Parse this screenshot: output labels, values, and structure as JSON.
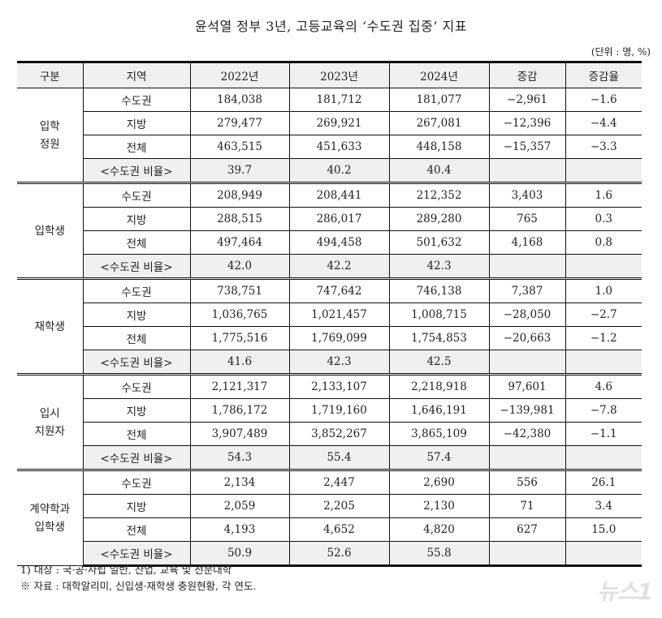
{
  "title": "윤석열 정부 3년, 고등교육의 ‘수도권 집중’ 지표",
  "unit": "(단위 : 명, %)",
  "headers": [
    "구분",
    "지역",
    "2022년",
    "2023년",
    "2024년",
    "증감",
    "증감율"
  ],
  "groups": [
    {
      "label_lines": [
        "입학",
        "정원"
      ],
      "rows": [
        {
          "region": "수도권",
          "y2022": "184,038",
          "y2023": "181,712",
          "y2024": "181,077",
          "change": "−2,961",
          "rate": "−1.6"
        },
        {
          "region": "지방",
          "y2022": "279,477",
          "y2023": "269,921",
          "y2024": "267,081",
          "change": "−12,396",
          "rate": "−4.4"
        },
        {
          "region": "전체",
          "y2022": "463,515",
          "y2023": "451,633",
          "y2024": "448,158",
          "change": "−15,357",
          "rate": "−3.3"
        },
        {
          "region": "<수도권 비율>",
          "y2022": "39.7",
          "y2023": "40.2",
          "y2024": "40.4",
          "change": "",
          "rate": ""
        }
      ]
    },
    {
      "label_lines": [
        "입학생"
      ],
      "rows": [
        {
          "region": "수도권",
          "y2022": "208,949",
          "y2023": "208,441",
          "y2024": "212,352",
          "change": "3,403",
          "rate": "1.6"
        },
        {
          "region": "지방",
          "y2022": "288,515",
          "y2023": "286,017",
          "y2024": "289,280",
          "change": "765",
          "rate": "0.3"
        },
        {
          "region": "전체",
          "y2022": "497,464",
          "y2023": "494,458",
          "y2024": "501,632",
          "change": "4,168",
          "rate": "0.8"
        },
        {
          "region": "<수도권 비율>",
          "y2022": "42.0",
          "y2023": "42.2",
          "y2024": "42.3",
          "change": "",
          "rate": ""
        }
      ]
    },
    {
      "label_lines": [
        "재학생"
      ],
      "rows": [
        {
          "region": "수도권",
          "y2022": "738,751",
          "y2023": "747,642",
          "y2024": "746,138",
          "change": "7,387",
          "rate": "1.0"
        },
        {
          "region": "지방",
          "y2022": "1,036,765",
          "y2023": "1,021,457",
          "y2024": "1,008,715",
          "change": "−28,050",
          "rate": "−2.7"
        },
        {
          "region": "전체",
          "y2022": "1,775,516",
          "y2023": "1,769,099",
          "y2024": "1,754,853",
          "change": "−20,663",
          "rate": "−1.2"
        },
        {
          "region": "<수도권 비율>",
          "y2022": "41.6",
          "y2023": "42.3",
          "y2024": "42.5",
          "change": "",
          "rate": ""
        }
      ]
    },
    {
      "label_lines": [
        "입시",
        "지원자"
      ],
      "rows": [
        {
          "region": "수도권",
          "y2022": "2,121,317",
          "y2023": "2,133,107",
          "y2024": "2,218,918",
          "change": "97,601",
          "rate": "4.6"
        },
        {
          "region": "지방",
          "y2022": "1,786,172",
          "y2023": "1,719,160",
          "y2024": "1,646,191",
          "change": "−139,981",
          "rate": "−7.8"
        },
        {
          "region": "전체",
          "y2022": "3,907,489",
          "y2023": "3,852,267",
          "y2024": "3,865,109",
          "change": "−42,380",
          "rate": "−1.1"
        },
        {
          "region": "<수도권 비율>",
          "y2022": "54.3",
          "y2023": "55.4",
          "y2024": "57.4",
          "change": "",
          "rate": ""
        }
      ]
    },
    {
      "label_lines": [
        "계약학과",
        "입학생"
      ],
      "rows": [
        {
          "region": "수도권",
          "y2022": "2,134",
          "y2023": "2,447",
          "y2024": "2,690",
          "change": "556",
          "rate": "26.1"
        },
        {
          "region": "지방",
          "y2022": "2,059",
          "y2023": "2,205",
          "y2024": "2,130",
          "change": "71",
          "rate": "3.4"
        },
        {
          "region": "전체",
          "y2022": "4,193",
          "y2023": "4,652",
          "y2024": "4,820",
          "change": "627",
          "rate": "15.0"
        },
        {
          "region": "<수도권 비율>",
          "y2022": "50.9",
          "y2023": "52.6",
          "y2024": "55.8",
          "change": "",
          "rate": ""
        }
      ]
    }
  ],
  "notes": [
    "1) 대상 : 국·공·사립 일반, 산업, 교육 및 전문대학",
    "※ 자료 : 대학알리미, 신입생·재학생 충원현황, 각 연도."
  ],
  "watermark": "뉴스1"
}
